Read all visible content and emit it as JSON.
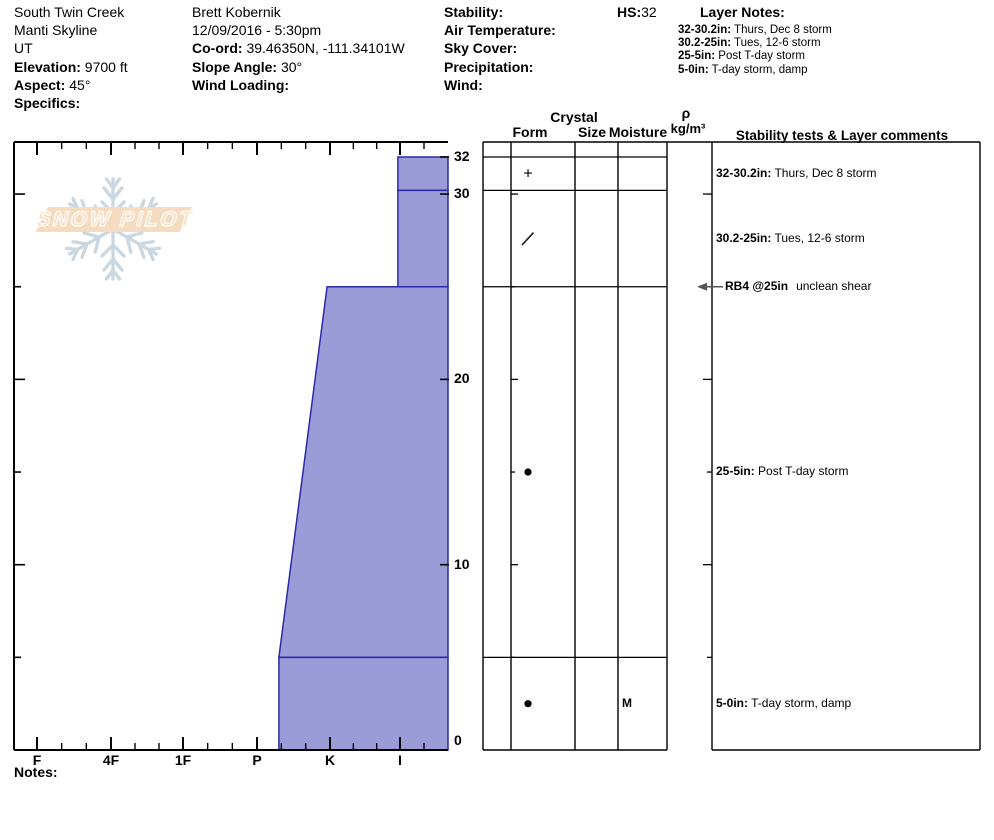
{
  "header": {
    "left": {
      "line1": "South Twin Creek",
      "line2": "Manti Skyline",
      "line3": "UT",
      "elevation_label": "Elevation:",
      "elevation_value": "9700 ft",
      "aspect_label": "Aspect:",
      "aspect_value": "45°",
      "specifics_label": "Specifics:"
    },
    "middle": {
      "observer": "Brett Kobernik",
      "datetime": "12/09/2016 - 5:30pm",
      "coord_label": "Co-ord:",
      "coord_value": "39.46350N, -111.34101W",
      "slope_label": "Slope Angle:",
      "slope_value": "30°",
      "wind_loading_label": "Wind Loading:"
    },
    "conditions": {
      "stability_label": "Stability:",
      "air_temp_label": "Air Temperature:",
      "sky_label": "Sky Cover:",
      "precip_label": "Precipitation:",
      "wind_label": "Wind:"
    },
    "hs_label": "HS:",
    "hs_value": "32",
    "layer_notes_title": "Layer Notes:",
    "layer_notes": [
      {
        "range": "32-30.2in:",
        "note": "Thurs, Dec 8 storm"
      },
      {
        "range": "30.2-25in:",
        "note": "Tues, 12-6 storm"
      },
      {
        "range": "25-5in:",
        "note": "Post T-day storm"
      },
      {
        "range": "5-0in:",
        "note": "T-day storm, damp"
      }
    ]
  },
  "logo": {
    "text": "SNOW PILOT"
  },
  "notes_label": "Notes:",
  "table": {
    "headers": {
      "crystal": "Crystal",
      "form": "Form",
      "size": "Size",
      "moisture": "Moisture",
      "rho": "ρ",
      "rho_units": "kg/m³",
      "comments": "Stability tests & Layer comments"
    }
  },
  "chart_data": {
    "type": "bar",
    "subtype": "snow-hardness-profile",
    "depth_unit": "in",
    "total_depth": 32,
    "hardness_axis": {
      "categories": [
        "I",
        "K",
        "P",
        "1F",
        "4F",
        "F"
      ],
      "note": "hand hardness, hardest (I) at left, softest (F) at right; bars extend leftward from right edge"
    },
    "depth_axis": {
      "labels": [
        32,
        30,
        20,
        10,
        0
      ],
      "right_tick_depths": [
        32,
        30,
        20,
        10
      ],
      "ruler_ticks": [
        5,
        10,
        15,
        20,
        25,
        30
      ]
    },
    "layers": [
      {
        "top_in": 32,
        "bottom_in": 30.2,
        "hardness": "F",
        "hardness_num_top": 1.03,
        "hardness_num_bottom": 1.03,
        "grain_form": "PP",
        "symbol_code": "plus",
        "grain_symbol": "+",
        "size": "",
        "moisture": "",
        "density": "",
        "comment_range": "32-30.2in:",
        "comment": "Thurs, Dec 8 storm"
      },
      {
        "top_in": 30.2,
        "bottom_in": 25,
        "hardness": "F",
        "hardness_num_top": 1.03,
        "hardness_num_bottom": 1.03,
        "grain_form": "DF",
        "symbol_code": "slash",
        "grain_symbol": "/",
        "size": "",
        "moisture": "",
        "density": "",
        "comment_range": "30.2-25in:",
        "comment": "Tues, 12-6 storm"
      },
      {
        "top_in": 25,
        "bottom_in": 5,
        "hardness": "4F to 1F-4F",
        "hardness_num_top": 2.04,
        "hardness_num_bottom": 2.7,
        "grain_form": "RG",
        "symbol_code": "dot",
        "grain_symbol": "●",
        "size": "",
        "moisture": "",
        "density": "",
        "comment_range": "25-5in:",
        "comment": "Post T-day storm"
      },
      {
        "top_in": 5,
        "bottom_in": 0,
        "hardness": "1F-4F",
        "hardness_num_top": 2.7,
        "hardness_num_bottom": 2.7,
        "grain_form": "RG",
        "symbol_code": "dot",
        "grain_symbol": "●",
        "size": "",
        "moisture": "M",
        "density": "",
        "comment_range": "5-0in:",
        "comment": "T-day storm, damp"
      }
    ],
    "stability_tests": [
      {
        "depth_in": 25,
        "label": "RB4 @25in",
        "result": "unclean shear"
      }
    ],
    "colors": {
      "bar_fill": "#9b9bd8",
      "bar_stroke": "#2b2ba6",
      "axis": "#000000",
      "test_arrow": "#555555",
      "logo_snowflake": "#c9d6e0",
      "logo_banner": "#f5dcc1",
      "logo_letters": "#ffffff"
    }
  }
}
